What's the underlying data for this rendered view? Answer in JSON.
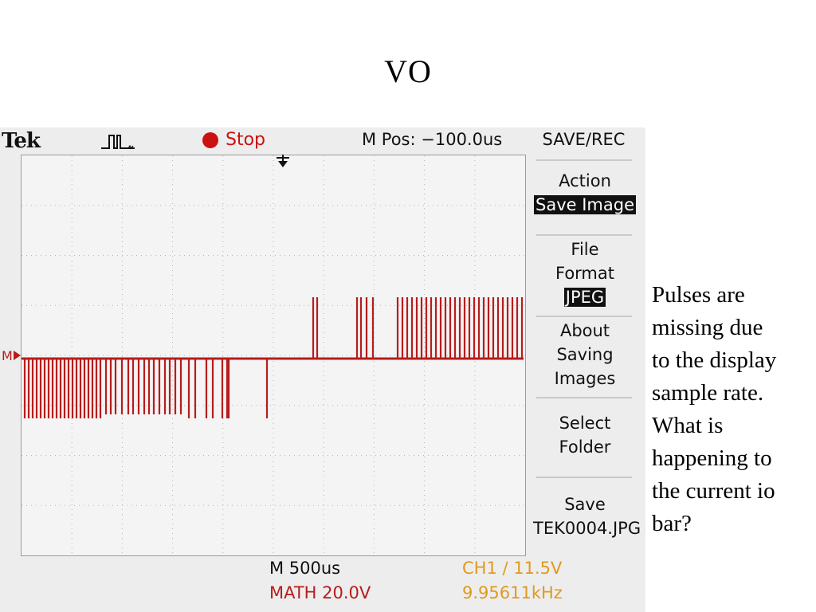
{
  "slide": {
    "title": "VO",
    "note_lines": [
      "Pulses are",
      "missing due",
      "to the display",
      "sample rate.",
      "What is",
      "happening to",
      "the current io",
      "bar?"
    ]
  },
  "scope": {
    "brand": "Tek",
    "run_state": "Stop",
    "m_pos": "M Pos: −100.0us",
    "marker_label": "M",
    "timebase": "M 500us",
    "math": "MATH 20.0V",
    "ch1_trigger": "CH1 ∕ 11.5V",
    "frequency": "9.95611kHz",
    "trace_color": "#b71c1c",
    "menu": {
      "title": "SAVE/REC",
      "action_label": "Action",
      "action_value": "Save Image",
      "file_format_line1": "File",
      "file_format_line2": "Format",
      "file_format_value": "JPEG",
      "about_line1": "About",
      "about_line2": "Saving",
      "about_line3": "Images",
      "select_line1": "Select",
      "select_line2": "Folder",
      "save_label": "Save",
      "save_filename": "TEK0004.JPG"
    }
  }
}
